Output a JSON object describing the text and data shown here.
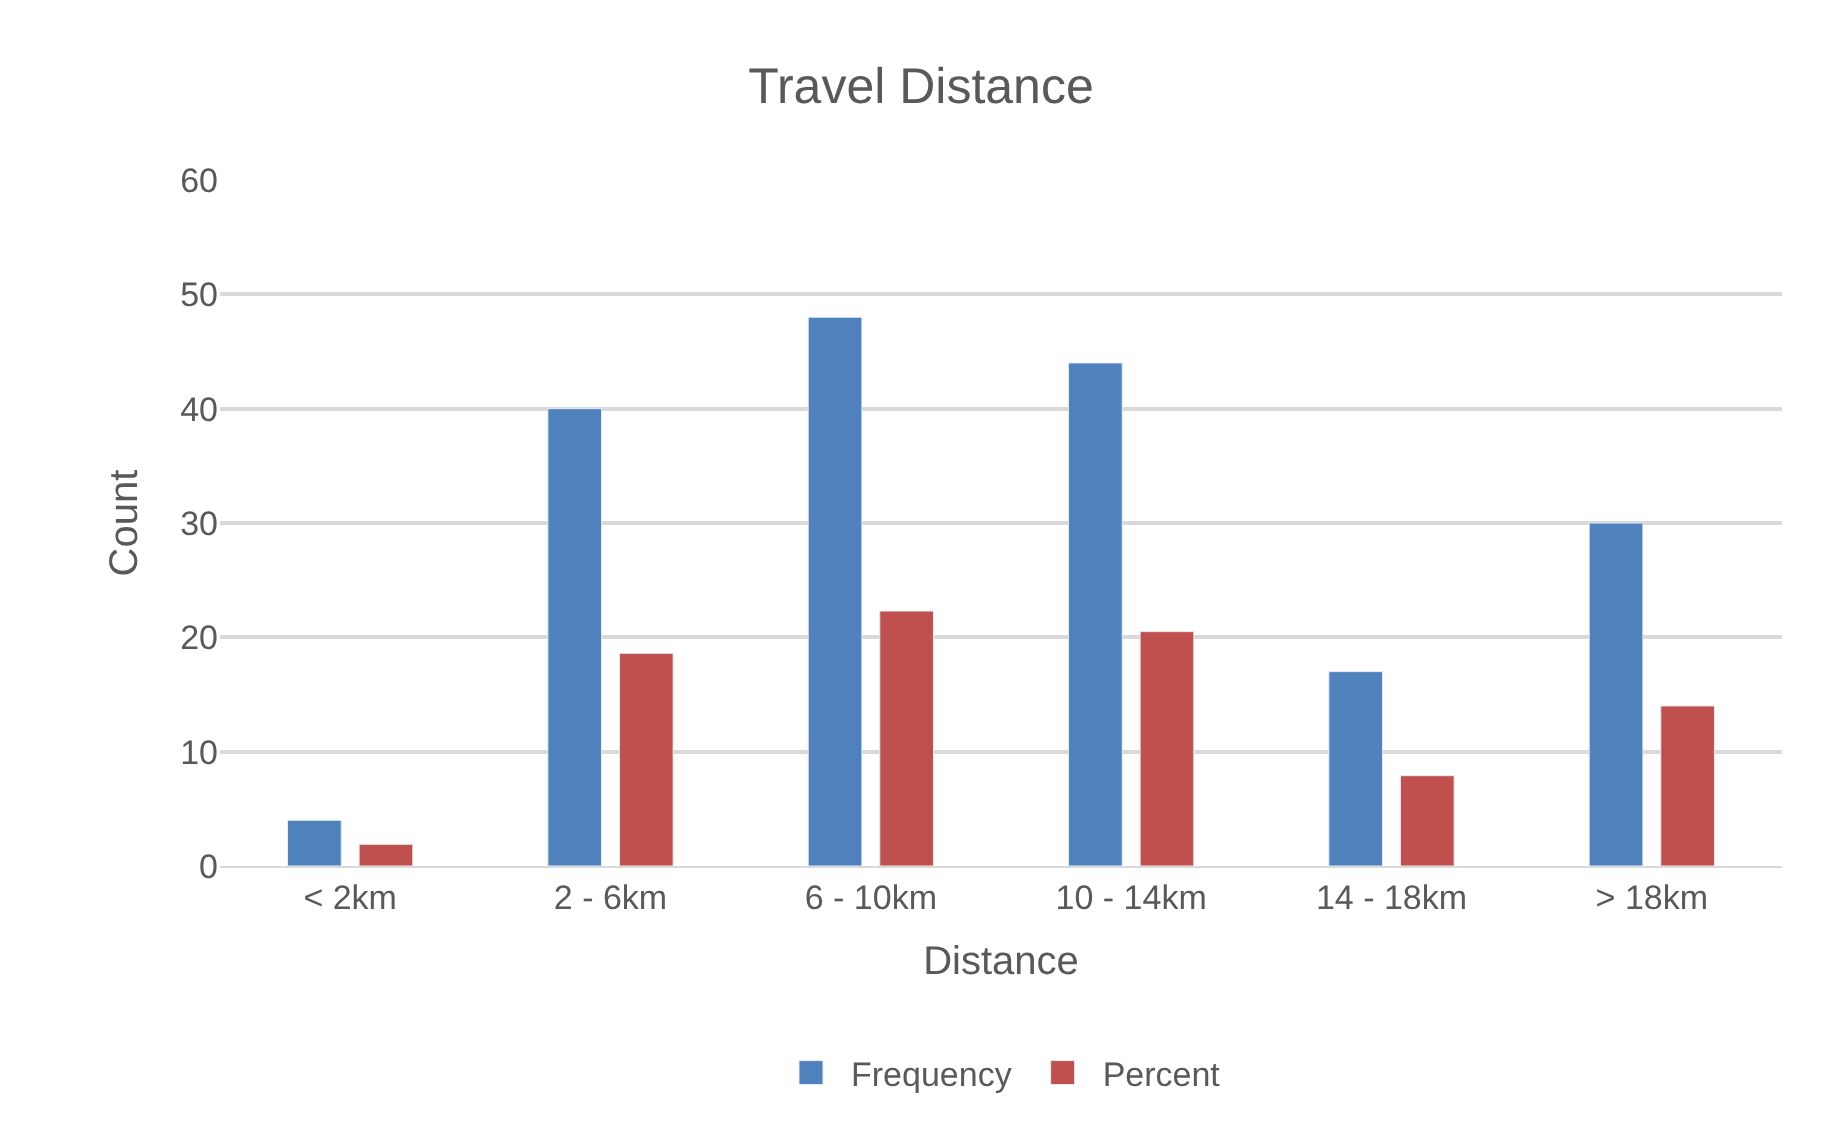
{
  "chart_data": {
    "type": "bar",
    "title": "Travel Distance",
    "xlabel": "Distance",
    "ylabel": "Count",
    "categories": [
      "< 2km",
      "2 - 6km",
      "6 - 10km",
      "10 - 14km",
      "14 - 18km",
      "> 18km"
    ],
    "series": [
      {
        "name": "Frequency",
        "color": "#4f81bd",
        "values": [
          4,
          40,
          48,
          44,
          17,
          30
        ]
      },
      {
        "name": "Percent",
        "color": "#c0504d",
        "values": [
          1.9,
          18.6,
          22.3,
          20.5,
          7.9,
          14.0
        ]
      }
    ],
    "ylim": [
      0,
      60
    ],
    "yticks": [
      0,
      10,
      20,
      30,
      40,
      50,
      60
    ],
    "grid": "y",
    "legend": "bottom"
  }
}
